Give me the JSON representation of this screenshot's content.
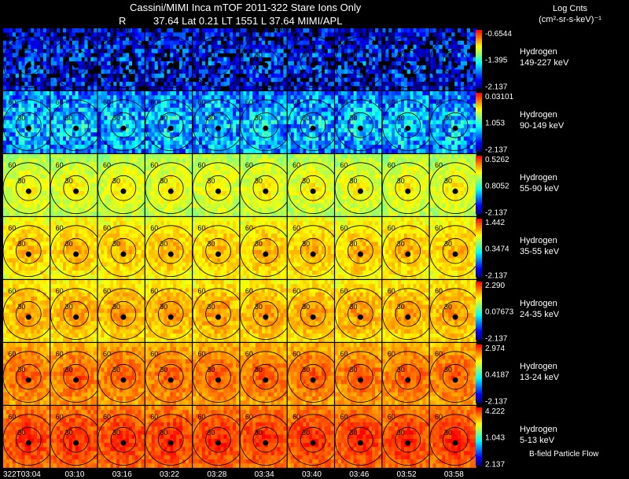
{
  "header": {
    "title": "Cassini/MIMI Inca mTOF  2011-322   Stare   Ions Only",
    "r_label": "R",
    "position_line": "37.64 Lat 0.21 LT 1551 L      37.64  MIMI/APL",
    "units_line1": "Log Cnts",
    "units_line2": "(cm²-sr-s-keV)⁻¹"
  },
  "overlay_labels": [
    "satur",
    "saturn"
  ],
  "footer_note": "B-field Particle Flow",
  "contour_labels": [
    "30",
    "60"
  ],
  "chart_data": {
    "type": "heatmap",
    "title": "Cassini/MIMI Inca mTOF 2011-322 Stare Ions Only",
    "time_labels": [
      "322T03:04",
      "03:10",
      "03:16",
      "03:22",
      "03:28",
      "03:34",
      "03:40",
      "03:46",
      "03:52",
      "03:58"
    ],
    "colorscale": [
      "#000080",
      "#0000ff",
      "#0080ff",
      "#00ffff",
      "#80ff80",
      "#ffff00",
      "#ff8000",
      "#ff0000"
    ],
    "rows": [
      {
        "species": "Hydrogen",
        "energy": "149-227 keV",
        "scale_max": "-0.6544",
        "scale_mid": "-1.395",
        "scale_min": "-2.137",
        "level": 0.12
      },
      {
        "species": "Hydrogen",
        "energy": "90-149 keV",
        "scale_max": "0.03101",
        "scale_mid": "1.053",
        "scale_min": "-2.137",
        "level": 0.28
      },
      {
        "species": "Hydrogen",
        "energy": "55-90 keV",
        "scale_max": "0.5262",
        "scale_mid": "0.8052",
        "scale_min": "-2.137",
        "level": 0.62
      },
      {
        "species": "Hydrogen",
        "energy": "35-55 keV",
        "scale_max": "1.442",
        "scale_mid": "0.3474",
        "scale_min": "-2.137",
        "level": 0.7
      },
      {
        "species": "Hydrogen",
        "energy": "24-35 keV",
        "scale_max": "2.290",
        "scale_mid": "0.07673",
        "scale_min": "-2.137",
        "level": 0.73
      },
      {
        "species": "Hydrogen",
        "energy": "13-24 keV",
        "scale_max": "2.974",
        "scale_mid": "0.4187",
        "scale_min": "-2.137",
        "level": 0.8
      },
      {
        "species": "Hydrogen",
        "energy": "5-13 keV",
        "scale_max": "4.222",
        "scale_mid": "1.043",
        "scale_min": "2.137",
        "level": 0.86
      }
    ]
  }
}
